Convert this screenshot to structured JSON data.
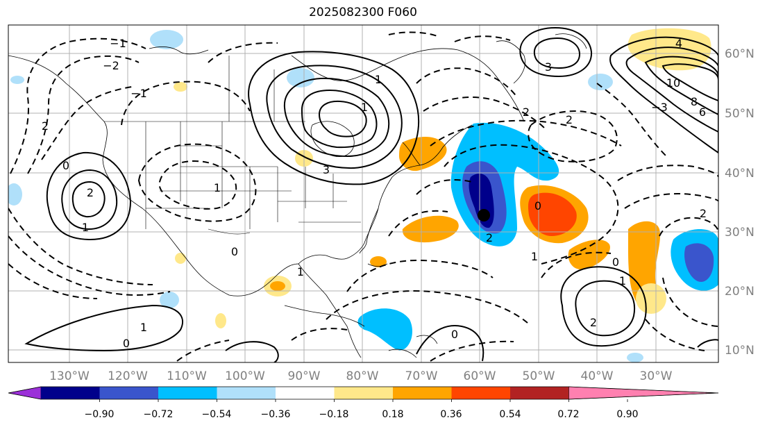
{
  "title": "2025082300 F060",
  "lon_labels": [
    "130°W",
    "120°W",
    "110°W",
    "100°W",
    "90°W",
    "80°W",
    "70°W",
    "60°W",
    "50°W",
    "40°W",
    "30°W"
  ],
  "lat_labels": [
    "60°N",
    "50°N",
    "40°N",
    "30°N",
    "20°N",
    "10°N"
  ],
  "colorbar": {
    "colors": [
      "#9b30d8",
      "#00008b",
      "#3a55cc",
      "#00bfff",
      "#b0e0fa",
      "#ffffff",
      "#ffe88a",
      "#ffa500",
      "#ff4500",
      "#b22222",
      "#ff80b0"
    ],
    "ticks": [
      "−0.90",
      "−0.72",
      "−0.54",
      "−0.36",
      "−0.18",
      "0.18",
      "0.36",
      "0.54",
      "0.72",
      "0.90"
    ]
  },
  "contour_labels": [
    "2",
    "1",
    "0",
    "−1",
    "−2",
    "−3",
    "4",
    "6",
    "8",
    "10",
    "3",
    "2",
    "1",
    "0",
    "1",
    "2",
    "2",
    "0",
    "1",
    "1",
    "0",
    "2",
    "2",
    "1",
    "0",
    "3",
    "2",
    "1",
    "1",
    "0",
    "−1"
  ],
  "legend_marker": "storm-center-dot"
}
